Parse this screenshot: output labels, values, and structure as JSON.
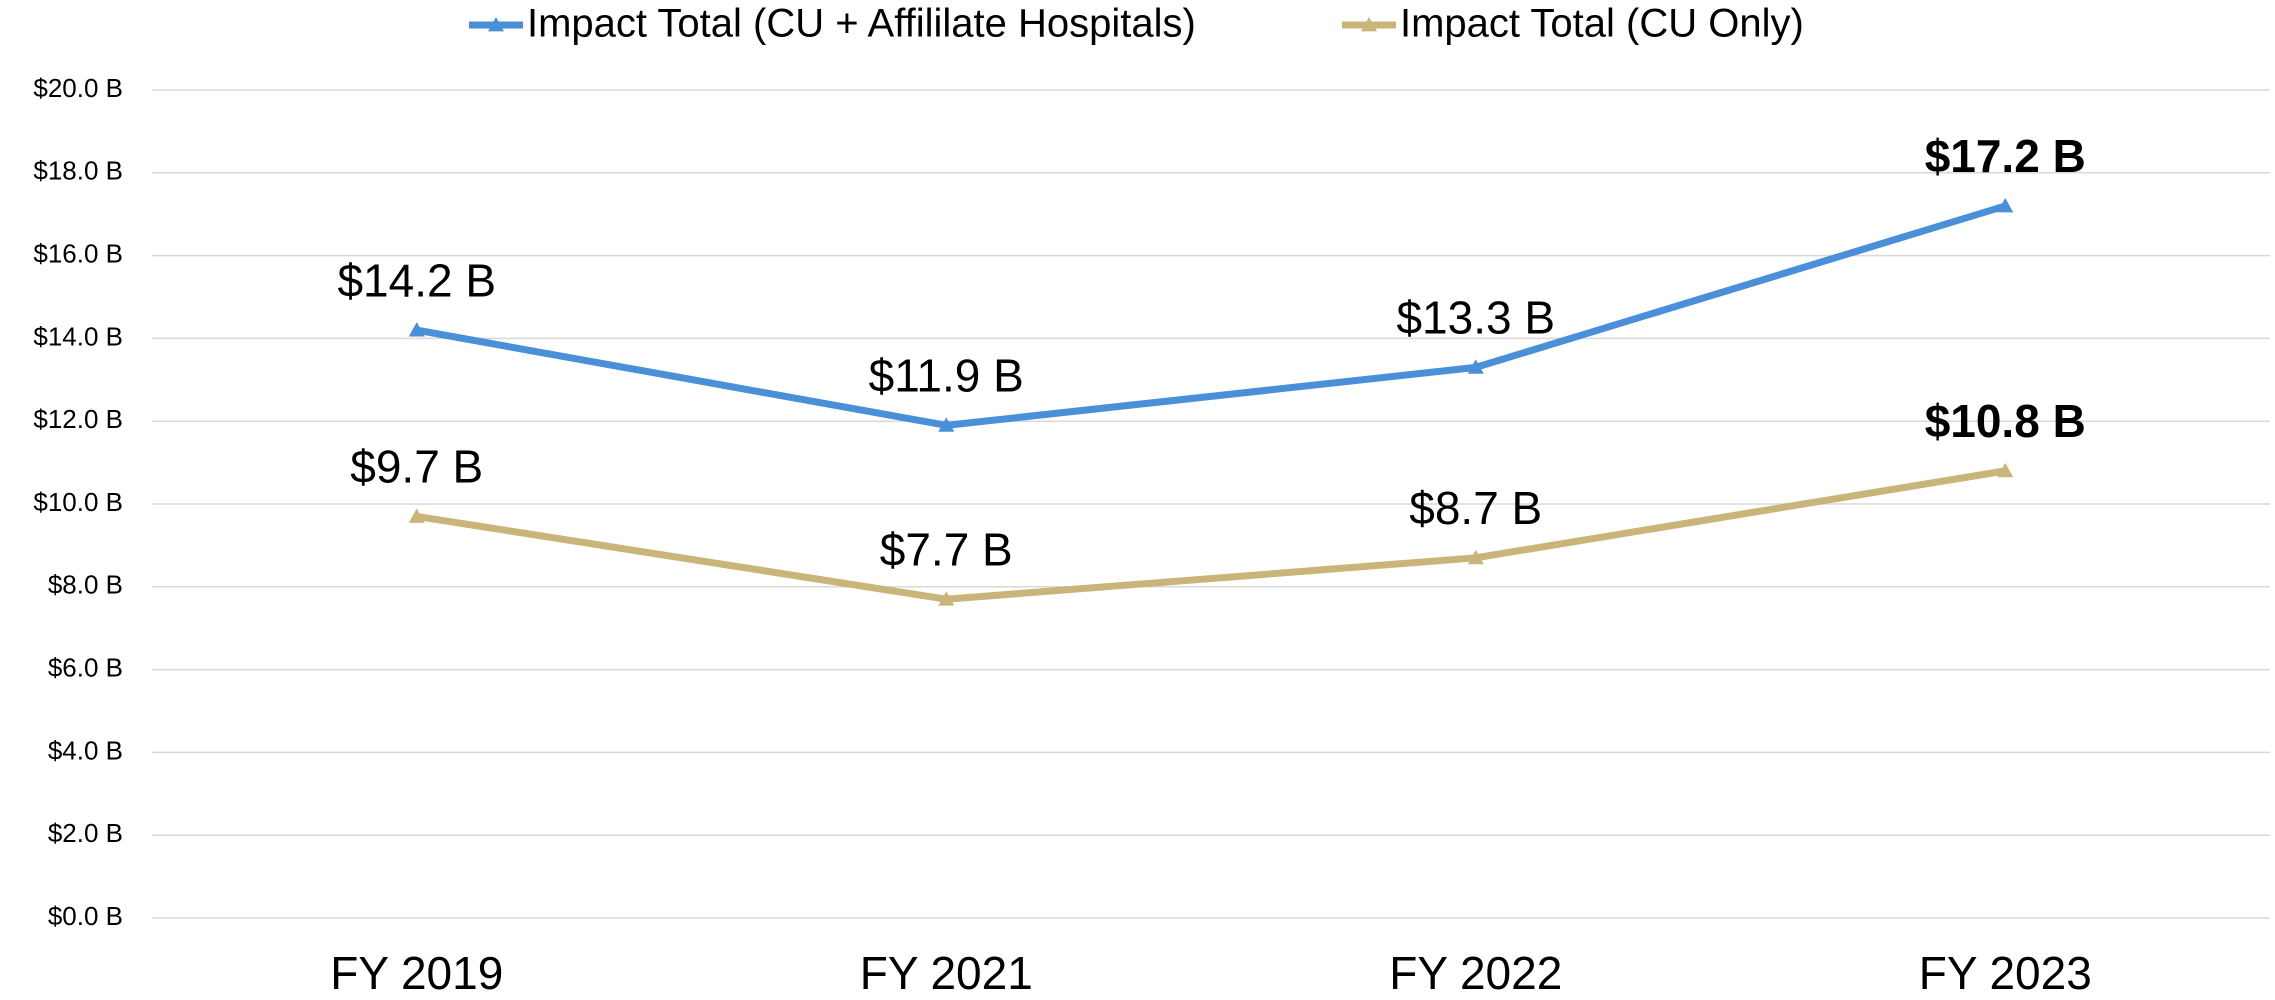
{
  "chart_data": {
    "type": "line",
    "categories": [
      "FY 2019",
      "FY 2021",
      "FY 2022",
      "FY 2023"
    ],
    "series": [
      {
        "name": "Impact Total (CU + Affililate Hospitals)",
        "color": "#4a90d9",
        "values": [
          14.2,
          11.9,
          13.3,
          17.2
        ],
        "value_labels": [
          "$14.2 B",
          "$11.9 B",
          "$13.3 B",
          "$17.2 B"
        ]
      },
      {
        "name": "Impact Total (CU Only)",
        "color": "#c9b57a",
        "values": [
          9.7,
          7.7,
          8.7,
          10.8
        ],
        "value_labels": [
          "$9.7 B",
          "$7.7 B",
          "$8.7 B",
          "$10.8 B"
        ]
      }
    ],
    "ylim": [
      0,
      20
    ],
    "yticks": [
      {
        "value": 0,
        "label": "$0.0 B"
      },
      {
        "value": 2,
        "label": "$2.0 B"
      },
      {
        "value": 4,
        "label": "$4.0 B"
      },
      {
        "value": 6,
        "label": "$6.0 B"
      },
      {
        "value": 8,
        "label": "$8.0 B"
      },
      {
        "value": 10,
        "label": "$10.0 B"
      },
      {
        "value": 12,
        "label": "$12.0 B"
      },
      {
        "value": 14,
        "label": "$14.0 B"
      },
      {
        "value": 16,
        "label": "$16.0 B"
      },
      {
        "value": 18,
        "label": "$18.0 B"
      },
      {
        "value": 20,
        "label": "$20.0 B"
      }
    ],
    "grid": true,
    "legend": "top"
  }
}
